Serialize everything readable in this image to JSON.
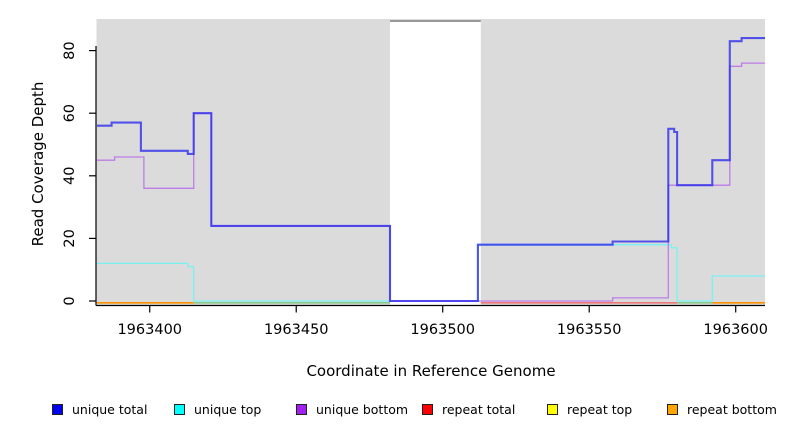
{
  "chart_data": {
    "type": "line",
    "subtype": "step-after-coverage",
    "title": "",
    "xlabel": "Coordinate in Reference Genome",
    "ylabel": "Read Coverage Depth",
    "xlim": [
      1963382,
      1963610
    ],
    "ylim": [
      0,
      90
    ],
    "x_ticks": {
      "values": [
        1963400,
        1963450,
        1963500,
        1963550,
        1963600
      ],
      "labels": [
        "1963400",
        "1963450",
        "1963500",
        "1963550",
        "1963600"
      ]
    },
    "y_ticks": {
      "values": [
        0,
        20,
        40,
        60,
        80
      ],
      "labels": [
        "0",
        "20",
        "40",
        "60",
        "80"
      ]
    },
    "grid": false,
    "legend_position": "bottom",
    "panel_bg": "#DBDBDB",
    "axis_color": "#000000",
    "masked_region": {
      "from": 1963482,
      "to": 1963513,
      "fill": "#FFFFFF",
      "top_line_color": "#999999"
    },
    "series": [
      {
        "name": "unique total",
        "legend_color": "#0000EE",
        "line_color": "#2A2AEE",
        "width": 2.1,
        "opacity": 0.78,
        "points": [
          [
            1963382,
            56
          ],
          [
            1963387,
            57
          ],
          [
            1963397,
            48
          ],
          [
            1963413,
            47
          ],
          [
            1963415,
            60
          ],
          [
            1963421,
            24
          ],
          [
            1963482,
            0
          ],
          [
            1963512,
            18
          ],
          [
            1963558,
            19
          ],
          [
            1963577,
            55
          ],
          [
            1963579,
            54
          ],
          [
            1963580,
            37
          ],
          [
            1963592,
            45
          ],
          [
            1963598,
            83
          ],
          [
            1963602,
            84
          ]
        ]
      },
      {
        "name": "unique top",
        "legend_color": "#00FFFF",
        "line_color": "#79F1F1",
        "width": 1.3,
        "opacity": 1,
        "points": [
          [
            1963382,
            12
          ],
          [
            1963413,
            11
          ],
          [
            1963415,
            0
          ],
          [
            1963512,
            18
          ],
          [
            1963578,
            17
          ],
          [
            1963580,
            0
          ],
          [
            1963592,
            8
          ]
        ]
      },
      {
        "name": "unique bottom",
        "legend_color": "#A020F0",
        "line_color": "#BD7DE8",
        "width": 1.3,
        "opacity": 1,
        "points": [
          [
            1963382,
            45
          ],
          [
            1963388,
            46
          ],
          [
            1963398,
            36
          ],
          [
            1963415,
            60
          ],
          [
            1963421,
            24
          ],
          [
            1963482,
            0
          ],
          [
            1963558,
            1
          ],
          [
            1963577,
            37
          ],
          [
            1963598,
            75
          ],
          [
            1963602,
            76
          ]
        ]
      },
      {
        "name": "repeat total",
        "legend_color": "#FF0000",
        "line_color": "#EE7777",
        "width": 1.5,
        "opacity": 1,
        "draw": false,
        "points": [
          [
            1963382,
            0
          ]
        ]
      },
      {
        "name": "repeat top",
        "legend_color": "#FFFF00",
        "line_color": "#E8E84A",
        "width": 1.5,
        "opacity": 1,
        "draw": false,
        "points": [
          [
            1963382,
            0
          ]
        ]
      },
      {
        "name": "repeat bottom",
        "legend_color": "#FFA500",
        "line_color": "#FF9000",
        "width": 1.5,
        "opacity": 1,
        "draw": false,
        "points": [
          [
            1963382,
            0
          ]
        ]
      }
    ],
    "baseline_overlap_segments": [
      {
        "from": 1963382,
        "to": 1963415,
        "color": "#FF9000"
      },
      {
        "from": 1963415,
        "to": 1963482,
        "color": "#8CC98C"
      },
      {
        "from": 1963513,
        "to": 1963580,
        "color": "#EE7777"
      },
      {
        "from": 1963580,
        "to": 1963592,
        "color": "#8CC98C"
      },
      {
        "from": 1963592,
        "to": 1963610,
        "color": "#FF9000"
      }
    ]
  }
}
